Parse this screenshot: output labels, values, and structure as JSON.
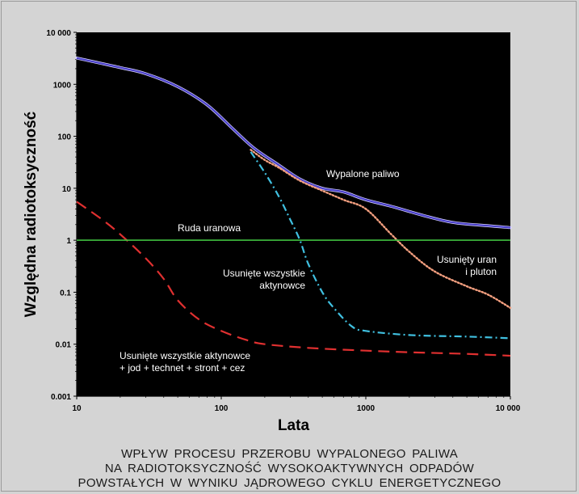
{
  "chart_data": {
    "type": "line",
    "title": "",
    "xlabel": "Lata",
    "ylabel": "Względna  radiotoksyczność",
    "x_scale": "log",
    "y_scale": "log",
    "xlim": [
      10,
      10000
    ],
    "ylim": [
      0.001,
      10000
    ],
    "x_ticks": [
      {
        "value": 10,
        "label": "10"
      },
      {
        "value": 100,
        "label": "100"
      },
      {
        "value": 1000,
        "label": "1000"
      },
      {
        "value": 10000,
        "label": "10 000"
      }
    ],
    "y_ticks": [
      {
        "value": 0.001,
        "label": "0.001"
      },
      {
        "value": 0.01,
        "label": "0.01"
      },
      {
        "value": 0.1,
        "label": "0.1"
      },
      {
        "value": 1,
        "label": "1"
      },
      {
        "value": 10,
        "label": "10"
      },
      {
        "value": 100,
        "label": "100"
      },
      {
        "value": 1000,
        "label": "1000"
      },
      {
        "value": 10000,
        "label": "10 000"
      }
    ],
    "grid": false,
    "background": "#000000",
    "series": [
      {
        "key": "wypalone",
        "color": "#4a40c8",
        "style": "solid",
        "x": [
          10,
          20,
          30,
          50,
          80,
          120,
          170,
          250,
          350,
          500,
          700,
          1000,
          1500,
          2500,
          4000,
          7000,
          10000
        ],
        "y": [
          3200,
          2100,
          1600,
          900,
          400,
          140,
          58,
          28,
          15,
          10,
          8.5,
          6,
          4.5,
          3,
          2.2,
          1.9,
          1.75
        ]
      },
      {
        "key": "uran_pluton",
        "color": "#f5a080",
        "style": "dotted",
        "x": [
          160,
          200,
          250,
          350,
          500,
          700,
          1000,
          1500,
          2000,
          3000,
          5000,
          7000,
          10000
        ],
        "y": [
          55,
          35,
          25,
          14,
          9,
          6,
          4,
          1.3,
          0.6,
          0.25,
          0.13,
          0.09,
          0.05
        ]
      },
      {
        "key": "aktynowce",
        "color": "#40c0e0",
        "style": "dashdot",
        "x": [
          160,
          200,
          250,
          300,
          350,
          400,
          500,
          600,
          800,
          1000,
          2000,
          5000,
          10000
        ],
        "y": [
          50,
          20,
          7,
          2.5,
          1,
          0.35,
          0.1,
          0.05,
          0.022,
          0.018,
          0.015,
          0.014,
          0.013
        ]
      },
      {
        "key": "jod",
        "color": "#e03030",
        "style": "dashed",
        "x": [
          10,
          15,
          20,
          30,
          40,
          50,
          70,
          100,
          150,
          200,
          400,
          1000,
          2000,
          5000,
          10000
        ],
        "y": [
          5.5,
          2.5,
          1.3,
          0.45,
          0.18,
          0.07,
          0.03,
          0.018,
          0.012,
          0.01,
          0.0085,
          0.0075,
          0.007,
          0.0065,
          0.006
        ]
      },
      {
        "key": "ruda",
        "color": "#40c040",
        "style": "solid",
        "x": [
          10,
          10000
        ],
        "y": [
          1,
          1
        ]
      }
    ],
    "annotations": [
      {
        "key": "ann_wypalone",
        "lines": [
          "Wypalone paliwo"
        ]
      },
      {
        "key": "ann_ruda",
        "lines": [
          "Ruda  uranowa"
        ]
      },
      {
        "key": "ann_uran",
        "lines": [
          "Usunięty uran",
          "i pluton"
        ]
      },
      {
        "key": "ann_aktynowce",
        "lines": [
          "Usunięte wszystkie",
          "aktynowce"
        ]
      },
      {
        "key": "ann_jod",
        "lines": [
          "Usunięte wszystkie aktynowce",
          "+ jod + technet + stront + cez"
        ]
      }
    ]
  },
  "caption": {
    "lines": [
      "WPŁYW  PROCESU  PRZEROBU  WYPALONEGO  PALIWA",
      "NA  RADIOTOKSYCZNOŚĆ  WYSOKOAKTYWNYCH  ODPADÓW",
      "POWSTAŁYCH  W  WYNIKU  JĄDROWEGO  CYKLU  ENERGETYCZNEGO"
    ]
  }
}
